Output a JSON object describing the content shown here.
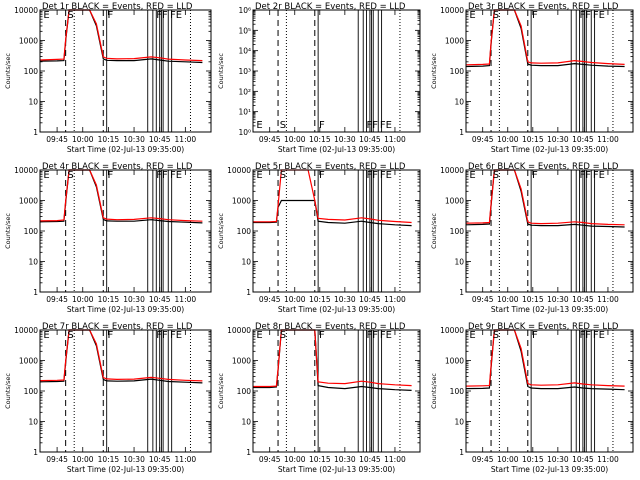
{
  "figure": {
    "x_tick_labels": [
      "09:45",
      "10:00",
      "10:15",
      "10:30",
      "10:45",
      "11:00"
    ],
    "x_tick_minutes": [
      585,
      600,
      615,
      630,
      645,
      660
    ],
    "xlim_minutes": [
      575,
      675
    ],
    "xlabel": "Start Time (02-Jul-13 09:35:00)",
    "ylabel": "Counts/sec",
    "colors": {
      "events": "#000000",
      "lld": "#ff0000"
    },
    "event_markers": {
      "dashed_minutes": [
        590,
        612
      ],
      "dotted_minutes": [
        595,
        663
      ],
      "solid_minutes": [
        614,
        638,
        641,
        643,
        645,
        646,
        647,
        650,
        652
      ],
      "labels": [
        {
          "text": "E",
          "minute": 577
        },
        {
          "text": "S",
          "minute": 591
        },
        {
          "text": "F",
          "minute": 614.5
        },
        {
          "text": "FF",
          "minute": 643
        },
        {
          "text": "FE",
          "minute": 651
        }
      ]
    }
  },
  "chart_data": [
    {
      "type": "line",
      "title": "Det 1r BLACK = Events, RED = LLD",
      "yscale": "log",
      "ylim": [
        1,
        10000
      ],
      "y_tick_labels": [
        "1",
        "10",
        "100",
        "1000",
        "10000"
      ],
      "y_tick_values": [
        1,
        10,
        100,
        1000,
        10000
      ],
      "x_minutes": [
        575,
        585,
        589,
        590,
        592,
        596,
        600,
        604,
        608,
        612,
        614,
        620,
        630,
        640,
        645,
        650,
        660,
        670
      ],
      "series": [
        {
          "name": "BLACK = Events",
          "values": [
            210,
            215,
            220,
            1000,
            10000,
            10000,
            10000,
            10000,
            3000,
            250,
            225,
            220,
            220,
            250,
            230,
            210,
            200,
            190
          ]
        },
        {
          "name": "RED = LLD",
          "values": [
            230,
            240,
            245,
            1100,
            10000,
            10000,
            10000,
            10000,
            3500,
            290,
            260,
            250,
            255,
            290,
            270,
            245,
            230,
            220
          ]
        }
      ]
    },
    {
      "type": "line",
      "title": "Det 2r BLACK = Events, RED = LLD",
      "yscale": "log",
      "ylim": [
        1,
        1000000
      ],
      "y_tick_labels": [
        "10⁰",
        "10¹",
        "10²",
        "10³",
        "10⁴",
        "10⁵",
        "10⁶"
      ],
      "y_tick_values": [
        1,
        10,
        100,
        1000,
        10000,
        100000,
        1000000
      ],
      "x_minutes": [],
      "series": []
    },
    {
      "type": "line",
      "title": "Det 3r BLACK = Events, RED = LLD",
      "yscale": "log",
      "ylim": [
        1,
        10000
      ],
      "y_tick_labels": [
        "1",
        "10",
        "100",
        "1000",
        "10000"
      ],
      "y_tick_values": [
        1,
        10,
        100,
        1000,
        10000
      ],
      "x_minutes": [
        575,
        585,
        589,
        590,
        592,
        596,
        600,
        604,
        608,
        612,
        614,
        620,
        630,
        640,
        645,
        650,
        660,
        670
      ],
      "series": [
        {
          "name": "BLACK = Events",
          "values": [
            140,
            145,
            150,
            800,
            10000,
            10000,
            10000,
            10000,
            2500,
            170,
            155,
            150,
            150,
            175,
            165,
            155,
            145,
            140
          ]
        },
        {
          "name": "RED = LLD",
          "values": [
            160,
            165,
            170,
            900,
            10000,
            10000,
            10000,
            10000,
            3000,
            200,
            185,
            180,
            185,
            220,
            205,
            190,
            175,
            165
          ]
        }
      ]
    },
    {
      "type": "line",
      "title": "Det 4r BLACK = Events, RED = LLD",
      "yscale": "log",
      "ylim": [
        1,
        10000
      ],
      "y_tick_labels": [
        "1",
        "10",
        "100",
        "1000",
        "10000"
      ],
      "y_tick_values": [
        1,
        10,
        100,
        1000,
        10000
      ],
      "x_minutes": [
        575,
        585,
        589,
        590,
        592,
        596,
        600,
        604,
        608,
        612,
        614,
        620,
        630,
        640,
        645,
        650,
        660,
        670
      ],
      "series": [
        {
          "name": "BLACK = Events",
          "values": [
            200,
            205,
            210,
            900,
            10000,
            10000,
            10000,
            10000,
            2800,
            240,
            215,
            210,
            210,
            235,
            220,
            205,
            195,
            185
          ]
        },
        {
          "name": "RED = LLD",
          "values": [
            215,
            220,
            230,
            1000,
            10000,
            10000,
            10000,
            10000,
            3200,
            270,
            245,
            235,
            240,
            270,
            255,
            235,
            220,
            210
          ]
        }
      ]
    },
    {
      "type": "line",
      "title": "Det 5r BLACK = Events, RED = LLD",
      "yscale": "log",
      "ylim": [
        1,
        10000
      ],
      "y_tick_labels": [
        "1",
        "10",
        "100",
        "1000",
        "10000"
      ],
      "y_tick_values": [
        1,
        10,
        100,
        1000,
        10000
      ],
      "x_minutes": [
        575,
        585,
        589,
        590,
        592,
        596,
        600,
        604,
        608,
        612,
        614,
        620,
        630,
        640,
        645,
        650,
        660,
        670
      ],
      "series": [
        {
          "name": "BLACK = Events",
          "values": [
            190,
            190,
            195,
            600,
            1000,
            1000,
            1000,
            1000,
            1000,
            1000,
            210,
            190,
            180,
            210,
            190,
            175,
            160,
            150
          ]
        },
        {
          "name": "RED = LLD",
          "values": [
            200,
            200,
            205,
            700,
            10000,
            10000,
            10000,
            10000,
            10000,
            1000,
            260,
            240,
            230,
            270,
            250,
            225,
            205,
            190
          ]
        }
      ]
    },
    {
      "type": "line",
      "title": "Det 6r BLACK = Events, RED = LLD",
      "yscale": "log",
      "ylim": [
        1,
        10000
      ],
      "y_tick_labels": [
        "1",
        "10",
        "100",
        "1000",
        "10000"
      ],
      "y_tick_values": [
        1,
        10,
        100,
        1000,
        10000
      ],
      "x_minutes": [
        575,
        585,
        589,
        590,
        592,
        596,
        600,
        604,
        608,
        612,
        614,
        620,
        630,
        640,
        645,
        650,
        660,
        670
      ],
      "series": [
        {
          "name": "BLACK = Events",
          "values": [
            160,
            165,
            170,
            700,
            10000,
            10000,
            10000,
            10000,
            2000,
            170,
            155,
            150,
            150,
            165,
            155,
            145,
            140,
            135
          ]
        },
        {
          "name": "RED = LLD",
          "values": [
            180,
            185,
            190,
            800,
            10000,
            10000,
            10000,
            10000,
            2400,
            200,
            180,
            175,
            180,
            200,
            190,
            175,
            165,
            160
          ]
        }
      ]
    },
    {
      "type": "line",
      "title": "Det 7r BLACK = Events, RED = LLD",
      "yscale": "log",
      "ylim": [
        1,
        10000
      ],
      "y_tick_labels": [
        "1",
        "10",
        "100",
        "1000",
        "10000"
      ],
      "y_tick_values": [
        1,
        10,
        100,
        1000,
        10000
      ],
      "x_minutes": [
        575,
        585,
        589,
        590,
        592,
        596,
        600,
        604,
        608,
        612,
        614,
        620,
        630,
        640,
        645,
        650,
        660,
        670
      ],
      "series": [
        {
          "name": "BLACK = Events",
          "values": [
            200,
            205,
            210,
            900,
            10000,
            10000,
            10000,
            10000,
            3000,
            240,
            215,
            210,
            215,
            245,
            225,
            205,
            195,
            185
          ]
        },
        {
          "name": "RED = LLD",
          "values": [
            220,
            225,
            230,
            1000,
            10000,
            10000,
            10000,
            10000,
            3500,
            275,
            250,
            240,
            245,
            280,
            260,
            240,
            225,
            215
          ]
        }
      ]
    },
    {
      "type": "line",
      "title": "Det 8r BLACK = Events, RED = LLD",
      "yscale": "log",
      "ylim": [
        1,
        10000
      ],
      "y_tick_labels": [
        "1",
        "10",
        "100",
        "1000",
        "10000"
      ],
      "y_tick_values": [
        1,
        10,
        100,
        1000,
        10000
      ],
      "x_minutes": [
        575,
        585,
        589,
        590,
        592,
        596,
        600,
        604,
        608,
        612,
        614,
        620,
        630,
        640,
        645,
        650,
        660,
        670
      ],
      "series": [
        {
          "name": "BLACK = Events",
          "values": [
            130,
            130,
            135,
            500,
            10000,
            10000,
            10000,
            10000,
            10000,
            10000,
            150,
            130,
            120,
            140,
            130,
            120,
            110,
            105
          ]
        },
        {
          "name": "RED = LLD",
          "values": [
            140,
            140,
            145,
            550,
            10000,
            10000,
            10000,
            10000,
            10000,
            10000,
            200,
            180,
            175,
            210,
            195,
            175,
            160,
            150
          ]
        }
      ]
    },
    {
      "type": "line",
      "title": "Det 9r BLACK = Events, RED = LLD",
      "yscale": "log",
      "ylim": [
        1,
        10000
      ],
      "y_tick_labels": [
        "1",
        "10",
        "100",
        "1000",
        "10000"
      ],
      "y_tick_values": [
        1,
        10,
        100,
        1000,
        10000
      ],
      "x_minutes": [
        575,
        585,
        589,
        590,
        592,
        596,
        600,
        604,
        608,
        612,
        614,
        620,
        630,
        640,
        645,
        650,
        660,
        670
      ],
      "series": [
        {
          "name": "BLACK = Events",
          "values": [
            120,
            122,
            125,
            600,
            10000,
            10000,
            10000,
            10000,
            2000,
            140,
            125,
            120,
            120,
            135,
            125,
            120,
            115,
            110
          ]
        },
        {
          "name": "RED = LLD",
          "values": [
            145,
            148,
            150,
            700,
            10000,
            10000,
            10000,
            10000,
            2500,
            175,
            160,
            155,
            160,
            185,
            170,
            160,
            150,
            145
          ]
        }
      ]
    }
  ]
}
